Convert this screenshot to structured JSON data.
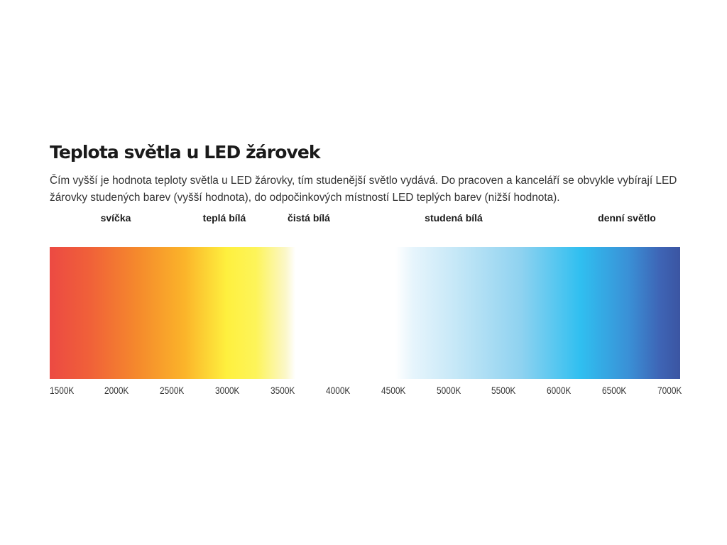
{
  "title": "Teplota světla u LED žárovek",
  "description": {
    "line1": "Čím vyšší je hodnota teploty světla u LED žárovky, tím studenější světlo vydává. Do pracoven a kanceláří se obvykle vybírají LED",
    "line2": "žárovky studených barev (vyšší hodnota), do odpočinkových místností LED teplých barev (nižší hodnota)."
  },
  "categories": [
    {
      "label": "svíčka",
      "kelvin": 2000
    },
    {
      "label": "teplá bílá",
      "kelvin": 3000
    },
    {
      "label": "čistá bílá",
      "kelvin": 3700
    },
    {
      "label": "studená bílá",
      "kelvin": 5100
    },
    {
      "label": "denní světlo",
      "kelvin": 6700
    }
  ],
  "scale": {
    "min_kelvin": 1500,
    "max_kelvin": 7000,
    "unit": "K",
    "ticks": [
      "1500K",
      "2000K",
      "2500K",
      "3000K",
      "3500K",
      "4000K",
      "4500K",
      "5000K",
      "5500K",
      "6000K",
      "6500K",
      "7000K"
    ],
    "warm_range": [
      1500,
      3700
    ],
    "neutral_range": [
      3700,
      4450
    ],
    "cool_range": [
      4450,
      7000
    ]
  },
  "colors": {
    "warm_start": "#ec4a43",
    "warm_orange": "#f58a2c",
    "warm_yellow": "#fef03e",
    "cool_light": "#bfe5f6",
    "cool_cyan": "#30bff0",
    "cool_end": "#3b55a2"
  }
}
